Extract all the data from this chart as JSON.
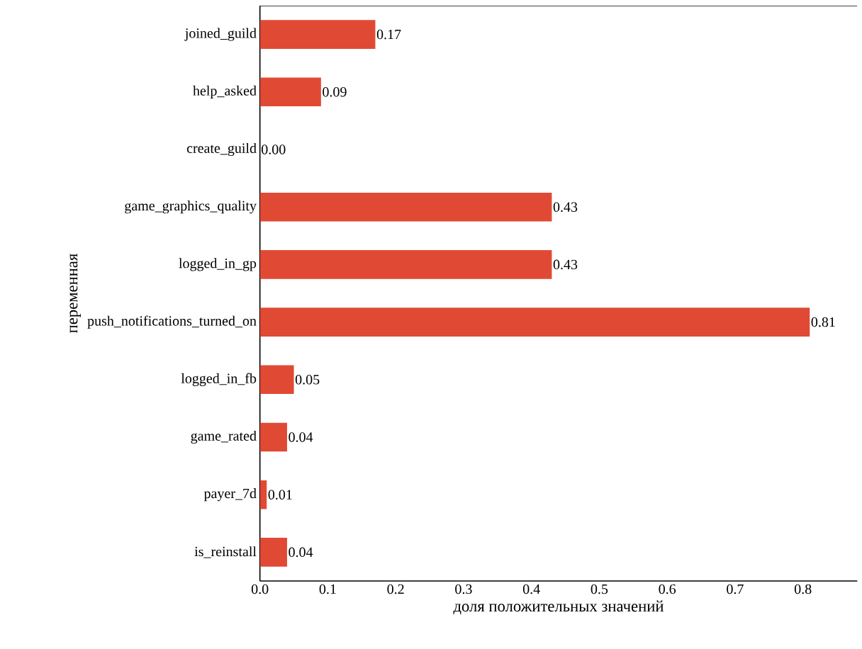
{
  "chart_data": {
    "type": "bar",
    "orientation": "horizontal",
    "xlabel": "доля положительных значений",
    "ylabel": "переменная",
    "categories": [
      "joined_guild",
      "help_asked",
      "create_guild",
      "game_graphics_quality",
      "logged_in_gp",
      "push_notifications_turned_on",
      "logged_in_fb",
      "game_rated",
      "payer_7d",
      "is_reinstall"
    ],
    "values": [
      0.17,
      0.09,
      0.0,
      0.43,
      0.43,
      0.81,
      0.05,
      0.04,
      0.01,
      0.04
    ],
    "value_labels": [
      "0.17",
      "0.09",
      "0.00",
      "0.43",
      "0.43",
      "0.81",
      "0.05",
      "0.04",
      "0.01",
      "0.04"
    ],
    "color": "#e04a35",
    "xlim": [
      0,
      0.88
    ],
    "xticks": [
      {
        "value": 0,
        "label": "0.0"
      },
      0.1,
      0.2,
      0.3,
      0.4,
      0.5,
      0.6,
      0.7,
      0.8
    ]
  }
}
